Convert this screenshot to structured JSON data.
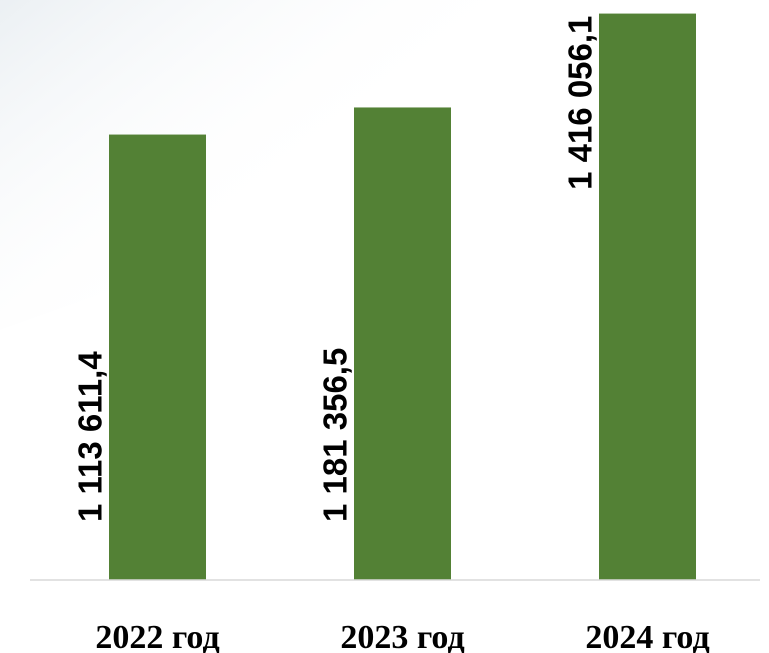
{
  "chart_data": {
    "type": "bar",
    "title": "",
    "xlabel": "",
    "ylabel": "",
    "categories": [
      "2022 год",
      "2023 год",
      "2024 год"
    ],
    "values": [
      1113611.4,
      1181356.5,
      1416056.1
    ],
    "value_labels": [
      "1 113 611,4",
      "1 181 356,5",
      "1 416 056,1"
    ],
    "ylim": [
      0,
      1450000
    ],
    "grid": false,
    "legend": "none",
    "bar_color": "#538135",
    "axis_color": "#d9d9d9"
  }
}
